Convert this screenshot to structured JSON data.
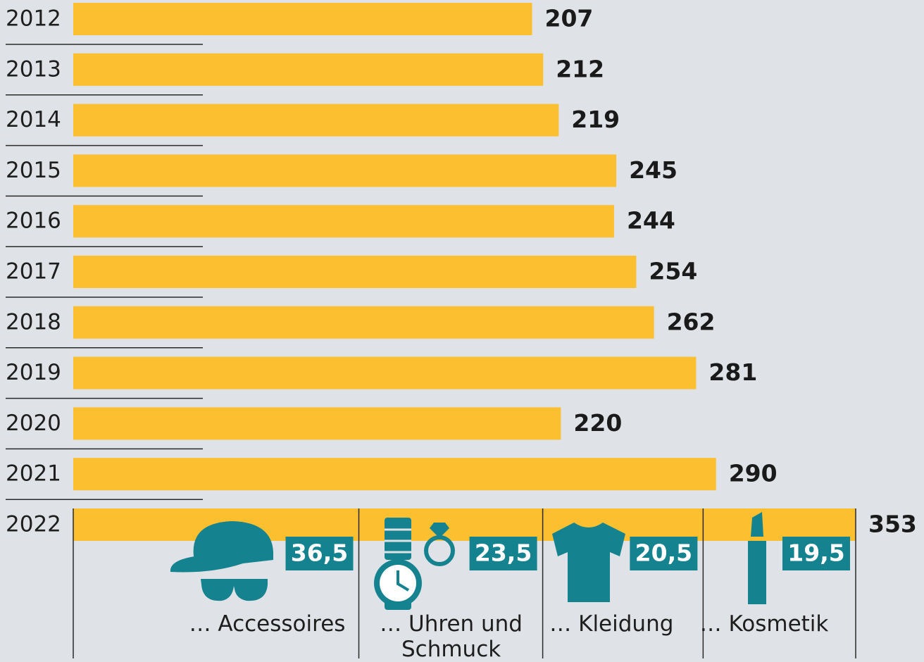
{
  "chart_data": {
    "type": "bar",
    "categories": [
      "2012",
      "2013",
      "2014",
      "2015",
      "2016",
      "2017",
      "2018",
      "2019",
      "2020",
      "2021",
      "2022"
    ],
    "values": [
      207,
      212,
      219,
      245,
      244,
      254,
      262,
      281,
      220,
      290,
      353
    ],
    "color": "#fbbf2f",
    "breakdown": {
      "categories": [
        "… Accessoires",
        "… Uhren und Schmuck",
        "… Kleidung",
        "… Kosmetik"
      ],
      "values": [
        36.5,
        23.5,
        20.5,
        19.5
      ],
      "value_labels": [
        "36,5",
        "23,5",
        "20,5",
        "19,5"
      ],
      "color": "#14838f"
    }
  }
}
